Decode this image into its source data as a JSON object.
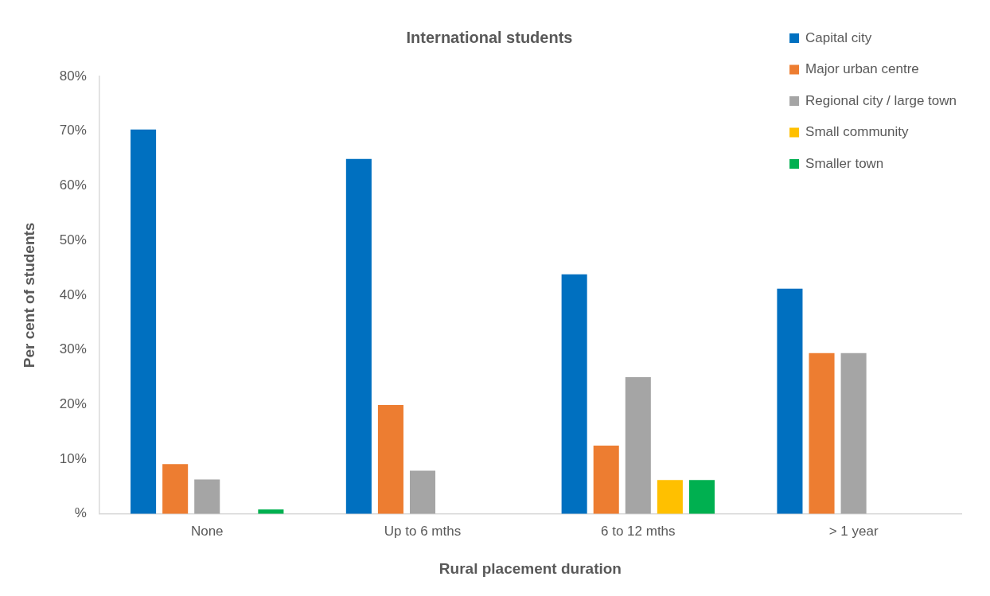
{
  "chart_data": {
    "type": "bar",
    "title": "International students",
    "xlabel": "Rural placement duration",
    "ylabel": "Per cent of students",
    "categories": [
      "None",
      "Up to 6 mths",
      "6 to 12 mths",
      "> 1 year"
    ],
    "series": [
      {
        "name": "Capital city",
        "color": "#0070c0",
        "values": [
          70.3,
          64.9,
          43.8,
          41.2
        ]
      },
      {
        "name": "Major urban centre",
        "color": "#ed7d31",
        "values": [
          9.1,
          19.9,
          12.5,
          29.4
        ]
      },
      {
        "name": "Regional city / large town",
        "color": "#a5a5a5",
        "values": [
          6.3,
          7.9,
          25,
          29.4
        ]
      },
      {
        "name": "Small community",
        "color": "#ffc000",
        "values": [
          null,
          null,
          6.2,
          null
        ]
      },
      {
        "name": "Smaller town",
        "color": "#00b050",
        "values": [
          0.8,
          null,
          6.2,
          null
        ]
      }
    ],
    "ylim": [
      0,
      80
    ],
    "yticks": [
      {
        "value": 0,
        "label": "%"
      },
      {
        "value": 10,
        "label": "10%"
      },
      {
        "value": 20,
        "label": "20%"
      },
      {
        "value": 30,
        "label": "30%"
      },
      {
        "value": 40,
        "label": "40%"
      },
      {
        "value": 50,
        "label": "50%"
      },
      {
        "value": 60,
        "label": "60%"
      },
      {
        "value": 70,
        "label": "70%"
      },
      {
        "value": 80,
        "label": "80%"
      }
    ],
    "grid": false,
    "legend": "top right"
  }
}
